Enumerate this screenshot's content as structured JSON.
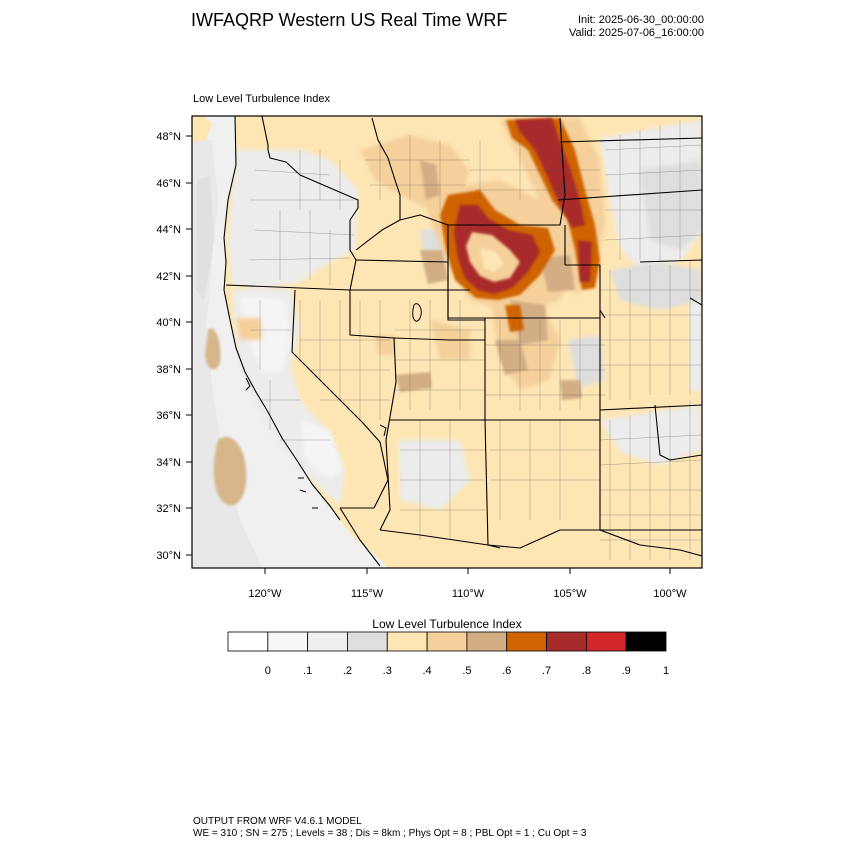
{
  "header": {
    "title": "IWFAQRP Western US Real Time WRF",
    "init": "Init: 2025-06-30_00:00:00",
    "valid": "Valid: 2025-07-06_16:00:00"
  },
  "panel": {
    "title": "Low Level Turbulence Index"
  },
  "map": {
    "lat_labels": [
      "48°N",
      "46°N",
      "44°N",
      "42°N",
      "40°N",
      "38°N",
      "36°N",
      "34°N",
      "32°N",
      "30°N"
    ],
    "lon_labels": [
      "120°W",
      "115°W",
      "110°W",
      "105°W",
      "100°W"
    ],
    "colors": {
      "ocean": "#f2f2f2",
      "land_base": "#ffe5b8",
      "boundaries": "#000000"
    }
  },
  "colorbar": {
    "title": "Low Level Turbulence Index",
    "colors": [
      "#ffffff",
      "#f7f7f7",
      "#efefef",
      "#dedede",
      "#fde6b4",
      "#f5d09b",
      "#d3ae84",
      "#cf6400",
      "#a82b2b",
      "#d3262b",
      "#000000"
    ],
    "labels": [
      "0",
      ".1",
      ".2",
      ".3",
      ".4",
      ".5",
      ".6",
      ".7",
      ".8",
      ".9",
      "1"
    ]
  },
  "footer": {
    "line1": "OUTPUT FROM WRF V4.6.1 MODEL",
    "line2": "WE = 310 ; SN = 275 ; Levels = 38 ; Dis = 8km ; Phys Opt = 8 ; PBL Opt = 1 ; Cu Opt = 3"
  }
}
